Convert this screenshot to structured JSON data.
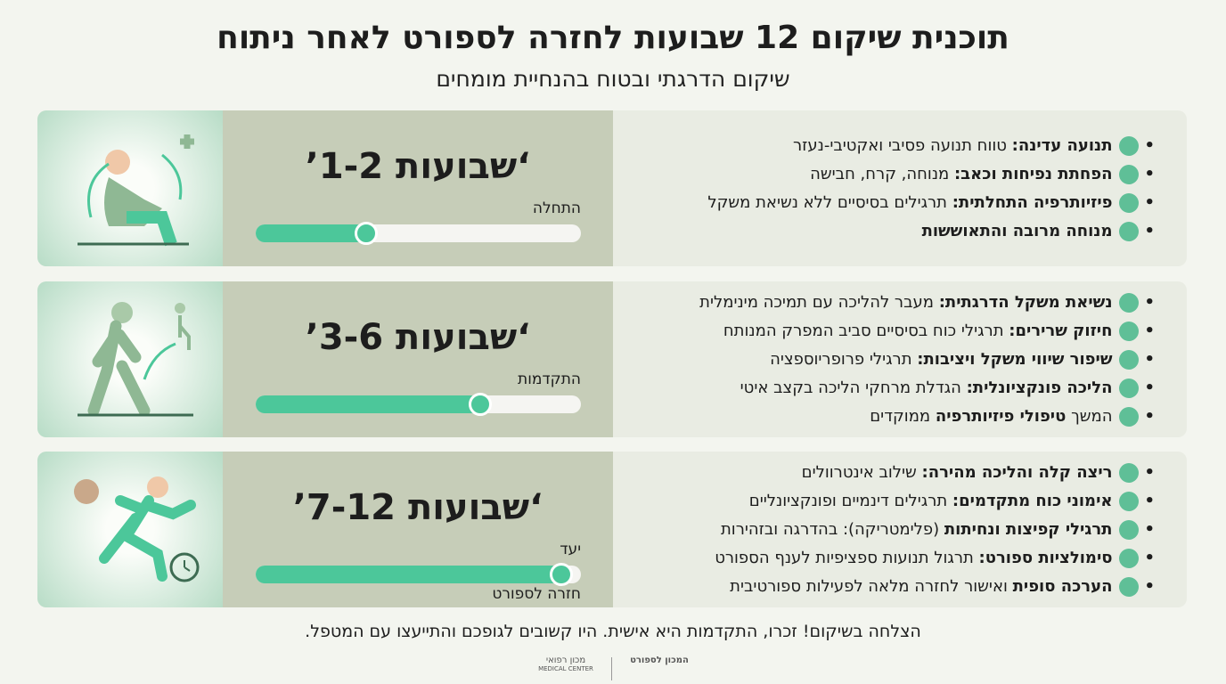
{
  "header": {
    "title": "תוכנית שיקום 12 שבועות לחזרה לספורט לאחר ניתוח",
    "subtitle": "שיקום הדרגתי ובטוח בהנחיית מומחים"
  },
  "phases": [
    {
      "weeks": "‘שבועות 1-2’",
      "progress": 34,
      "progress_label": "התחלה",
      "items": [
        [
          {
            "text": "תנועה עדינה:",
            "bold": true
          },
          {
            "text": " טווח תנועה פסיבי ואקטיבי-נעזר",
            "bold": false
          }
        ],
        [
          {
            "text": "הפחתת נפיחות וכאב:",
            "bold": true
          },
          {
            "text": " מנוחה, קרח, חבישה",
            "bold": false
          }
        ],
        [
          {
            "text": "פיזיותרפיה התחלתית:",
            "bold": true
          },
          {
            "text": " תרגילים בסיסיים ללא נשיאת משקל",
            "bold": false
          }
        ],
        [
          {
            "text": "מנוחה מרובה והתאוששות",
            "bold": true
          }
        ]
      ]
    },
    {
      "weeks": "‘שבועות 3-6’",
      "progress": 69,
      "progress_label": "התקדמות",
      "items": [
        [
          {
            "text": "נשיאת משקל הדרגתית:",
            "bold": true
          },
          {
            "text": " מעבר להליכה עם תמיכה מינימלית",
            "bold": false
          }
        ],
        [
          {
            "text": "חיזוק שרירים:",
            "bold": true
          },
          {
            "text": " תרגילי כוח בסיסיים סביב המפרק המנותח",
            "bold": false
          }
        ],
        [
          {
            "text": "שיפור שיווי משקל ויציבות:",
            "bold": true
          },
          {
            "text": " תרגילי פרופריוספציה",
            "bold": false
          }
        ],
        [
          {
            "text": "הליכה פונקציונלית:",
            "bold": true
          },
          {
            "text": " הגדלת מרחקי הליכה בקצב איטי",
            "bold": false
          }
        ],
        [
          {
            "text": "המשך ",
            "bold": false
          },
          {
            "text": "טיפולי פיזיותרפיה",
            "bold": true
          },
          {
            "text": " ממוקדים",
            "bold": false
          }
        ]
      ]
    },
    {
      "weeks": "‘שבועות 7-12’",
      "progress": 94,
      "progress_label": "יעד",
      "end_label": "חזרה לספורט",
      "items": [
        [
          {
            "text": "ריצה קלה והליכה מהירה:",
            "bold": true
          },
          {
            "text": " שילוב אינטרוולים",
            "bold": false
          }
        ],
        [
          {
            "text": "אימוני כוח מתקדמים:",
            "bold": true
          },
          {
            "text": " תרגילים דינמיים ופונקציונליים",
            "bold": false
          }
        ],
        [
          {
            "text": "תרגילי קפיצות ונחיתות",
            "bold": true
          },
          {
            "text": " (פלימטריקה): בהדרגה ובזהירות",
            "bold": false
          }
        ],
        [
          {
            "text": "סימולציות ספורט:",
            "bold": true
          },
          {
            "text": " תרגול תנועות ספציפיות לענף הספורט",
            "bold": false
          }
        ],
        [
          {
            "text": "הערכה סופית",
            "bold": true
          },
          {
            "text": " ואישור לחזרה מלאה לפעילות ספורטיבית",
            "bold": false
          }
        ]
      ]
    }
  ],
  "footer": {
    "note": "הצלחה בשיקום! זכרו, התקדמות היא אישית. היו קשובים לגופכם והתייעצו עם המטפל.",
    "logo_left": "מכון רפואי",
    "logo_left_en": "MEDICAL CENTER",
    "logo_right": "המכון לספורט"
  }
}
